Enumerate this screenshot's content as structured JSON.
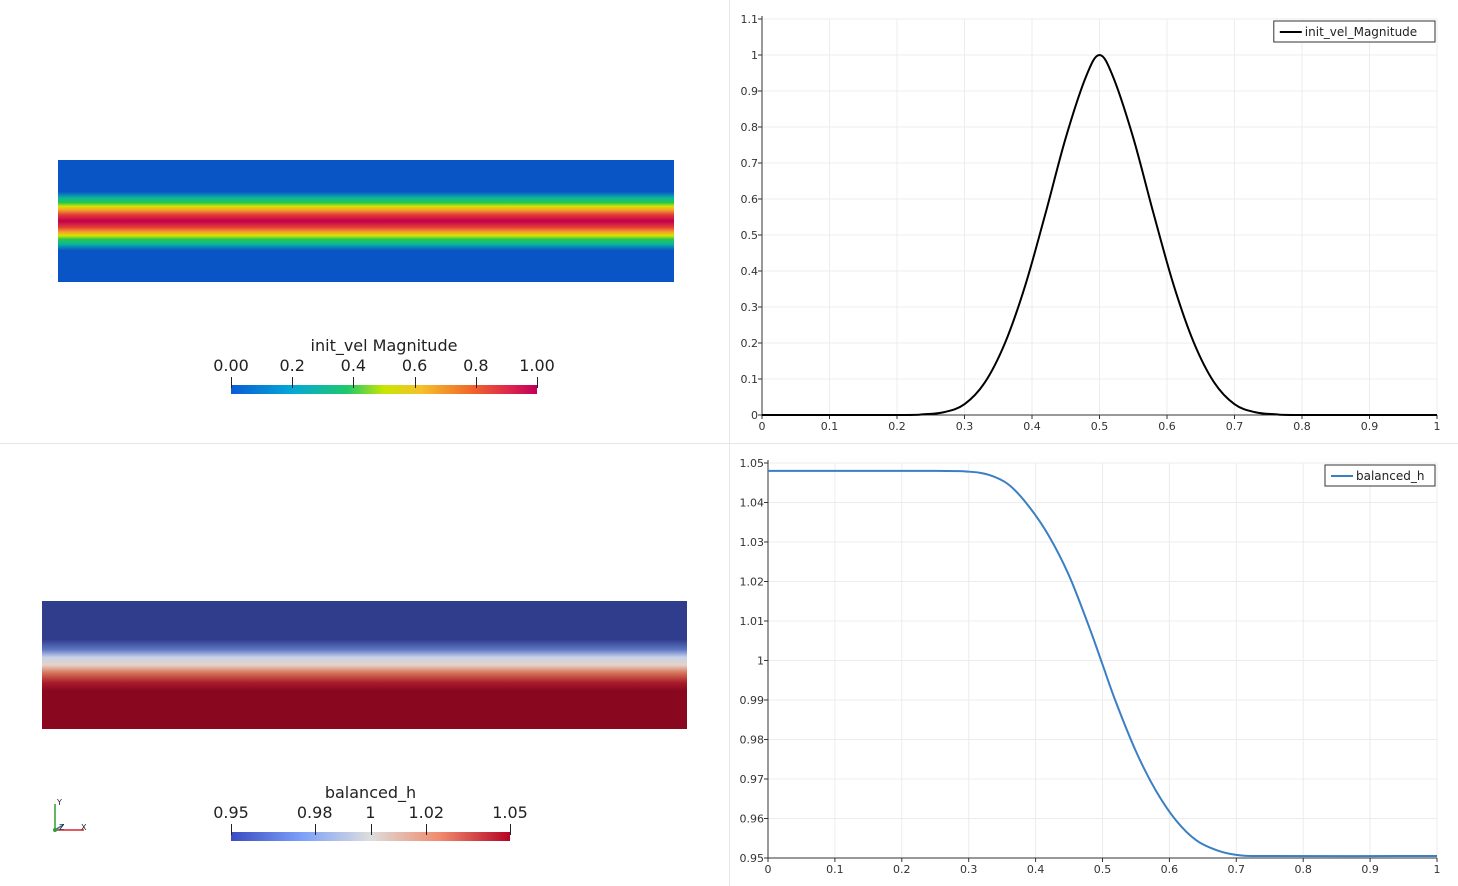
{
  "views": {
    "top_left": {
      "scalar_bar": {
        "title": "init_vel Magnitude",
        "ticks": [
          "0.00",
          "0.2",
          "0.4",
          "0.6",
          "0.8",
          "1.00"
        ],
        "colormap": "spectral",
        "range": [
          0,
          1
        ]
      }
    },
    "bottom_left": {
      "scalar_bar": {
        "title": "balanced_h",
        "ticks": [
          "0.95",
          "0.98",
          "1",
          "1.02",
          "1.05"
        ],
        "tick_values": [
          0.95,
          0.98,
          1.0,
          1.02,
          1.05
        ],
        "colormap": "cool-to-warm",
        "range": [
          0.95,
          1.05
        ]
      },
      "axes_triad": {
        "x_label": "X",
        "y_label": "Y",
        "z_label": "Z"
      }
    }
  },
  "chart_data": [
    {
      "type": "line",
      "series": [
        {
          "name": "init_vel_Magnitude",
          "color": "#000000",
          "x": [
            0,
            0.2,
            0.24,
            0.27,
            0.3,
            0.33,
            0.36,
            0.39,
            0.42,
            0.45,
            0.48,
            0.5,
            0.52,
            0.55,
            0.58,
            0.61,
            0.64,
            0.67,
            0.7,
            0.73,
            0.76,
            0.8,
            1
          ],
          "y": [
            0,
            0,
            0.002,
            0.008,
            0.03,
            0.09,
            0.2,
            0.36,
            0.56,
            0.77,
            0.94,
            1.0,
            0.94,
            0.77,
            0.56,
            0.36,
            0.2,
            0.09,
            0.03,
            0.008,
            0.002,
            0,
            0
          ]
        }
      ],
      "xlim": [
        0,
        1
      ],
      "ylim": [
        0,
        1.1
      ],
      "xticks": [
        "0",
        "0.1",
        "0.2",
        "0.3",
        "0.4",
        "0.5",
        "0.6",
        "0.7",
        "0.8",
        "0.9",
        "1"
      ],
      "xtick_values": [
        0,
        0.1,
        0.2,
        0.3,
        0.4,
        0.5,
        0.6,
        0.7,
        0.8,
        0.9,
        1
      ],
      "yticks": [
        "0",
        "0.1",
        "0.2",
        "0.3",
        "0.4",
        "0.5",
        "0.6",
        "0.7",
        "0.8",
        "0.9",
        "1",
        "1.1"
      ],
      "ytick_values": [
        0,
        0.1,
        0.2,
        0.3,
        0.4,
        0.5,
        0.6,
        0.7,
        0.8,
        0.9,
        1,
        1.1
      ],
      "grid": true,
      "legend": "top-right"
    },
    {
      "type": "line",
      "series": [
        {
          "name": "balanced_h",
          "color": "#3a7fc4",
          "x": [
            0,
            0.25,
            0.3,
            0.33,
            0.36,
            0.39,
            0.42,
            0.45,
            0.48,
            0.5,
            0.52,
            0.55,
            0.58,
            0.61,
            0.64,
            0.67,
            0.7,
            0.75,
            1
          ],
          "y": [
            1.048,
            1.048,
            1.0478,
            1.047,
            1.0445,
            1.039,
            1.0315,
            1.0215,
            1.0085,
            0.999,
            0.9895,
            0.977,
            0.967,
            0.9595,
            0.9545,
            0.952,
            0.9508,
            0.9505,
            0.9505
          ]
        }
      ],
      "xlim": [
        0,
        1
      ],
      "ylim": [
        0.95,
        1.05
      ],
      "xticks": [
        "0",
        "0.1",
        "0.2",
        "0.3",
        "0.4",
        "0.5",
        "0.6",
        "0.7",
        "0.8",
        "0.9",
        "1"
      ],
      "xtick_values": [
        0,
        0.1,
        0.2,
        0.3,
        0.4,
        0.5,
        0.6,
        0.7,
        0.8,
        0.9,
        1
      ],
      "yticks": [
        "0.95",
        "0.96",
        "0.97",
        "0.98",
        "0.99",
        "1",
        "1.01",
        "1.02",
        "1.03",
        "1.04",
        "1.05"
      ],
      "ytick_values": [
        0.95,
        0.96,
        0.97,
        0.98,
        0.99,
        1,
        1.01,
        1.02,
        1.03,
        1.04,
        1.05
      ],
      "grid": true,
      "legend": "top-right"
    }
  ]
}
